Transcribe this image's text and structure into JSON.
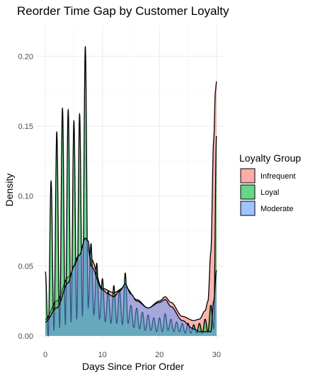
{
  "chart_data": {
    "type": "area",
    "title": "Reorder Time Gap by Customer Loyalty",
    "xlabel": "Days Since Prior Order",
    "ylabel": "Density",
    "xlim": [
      -1.5,
      31.5
    ],
    "ylim": [
      -0.002,
      0.222
    ],
    "x_ticks": [
      0,
      10,
      20,
      30
    ],
    "x_tick_labels": [
      "0",
      "10",
      "20",
      "30"
    ],
    "y_ticks": [
      0.0,
      0.05,
      0.1,
      0.15,
      0.2
    ],
    "y_tick_labels": [
      "0.00",
      "0.05",
      "0.10",
      "0.15",
      "0.20"
    ],
    "grid": true,
    "legend": {
      "title": "Loyalty Group",
      "position": "right",
      "entries": [
        "Infrequent",
        "Loyal",
        "Moderate"
      ]
    },
    "series": [
      {
        "name": "Infrequent",
        "color": "#F8766D",
        "x": [
          0,
          2,
          4,
          6,
          7,
          8,
          10,
          12,
          14,
          16,
          18,
          20,
          21,
          22,
          24,
          26,
          27,
          28,
          28.5,
          29,
          29.5,
          29.8,
          30
        ],
        "y": [
          0.012,
          0.025,
          0.042,
          0.058,
          0.07,
          0.055,
          0.034,
          0.031,
          0.035,
          0.026,
          0.02,
          0.025,
          0.028,
          0.024,
          0.014,
          0.011,
          0.012,
          0.018,
          0.025,
          0.06,
          0.14,
          0.175,
          0.182
        ]
      },
      {
        "name": "Loyal",
        "color": "#00BA38",
        "peaks_x": [
          0,
          1,
          2,
          3,
          4,
          5,
          6,
          7,
          8,
          9,
          10,
          11,
          12,
          13,
          14,
          15,
          16,
          17,
          18,
          19,
          20,
          21,
          22,
          23,
          24,
          25,
          26,
          27,
          28,
          29,
          30
        ],
        "peaks_y": [
          0.046,
          0.111,
          0.146,
          0.163,
          0.162,
          0.154,
          0.159,
          0.207,
          0.066,
          0.052,
          0.041,
          0.032,
          0.036,
          0.033,
          0.045,
          0.022,
          0.02,
          0.017,
          0.015,
          0.013,
          0.013,
          0.016,
          0.012,
          0.01,
          0.009,
          0.009,
          0.008,
          0.009,
          0.012,
          0.022,
          0.143
        ],
        "troughs_y": [
          0.0,
          0.004,
          0.006,
          0.008,
          0.01,
          0.012,
          0.014,
          0.02,
          0.015,
          0.012,
          0.01,
          0.009,
          0.009,
          0.008,
          0.009,
          0.006,
          0.005,
          0.004,
          0.004,
          0.003,
          0.003,
          0.004,
          0.003,
          0.003,
          0.002,
          0.002,
          0.002,
          0.002,
          0.003,
          0.005
        ]
      },
      {
        "name": "Moderate",
        "color": "#619CFF",
        "x": [
          0,
          2,
          4,
          5,
          6,
          7,
          7.5,
          8,
          10,
          11,
          12,
          13,
          14,
          15,
          16,
          18,
          20,
          21,
          22,
          24,
          26,
          27,
          28,
          29,
          29.5,
          30
        ],
        "y": [
          0.01,
          0.02,
          0.038,
          0.05,
          0.058,
          0.07,
          0.068,
          0.05,
          0.033,
          0.03,
          0.028,
          0.032,
          0.037,
          0.03,
          0.025,
          0.02,
          0.024,
          0.026,
          0.021,
          0.011,
          0.005,
          0.003,
          0.003,
          0.003,
          0.025,
          0.047
        ]
      }
    ]
  }
}
